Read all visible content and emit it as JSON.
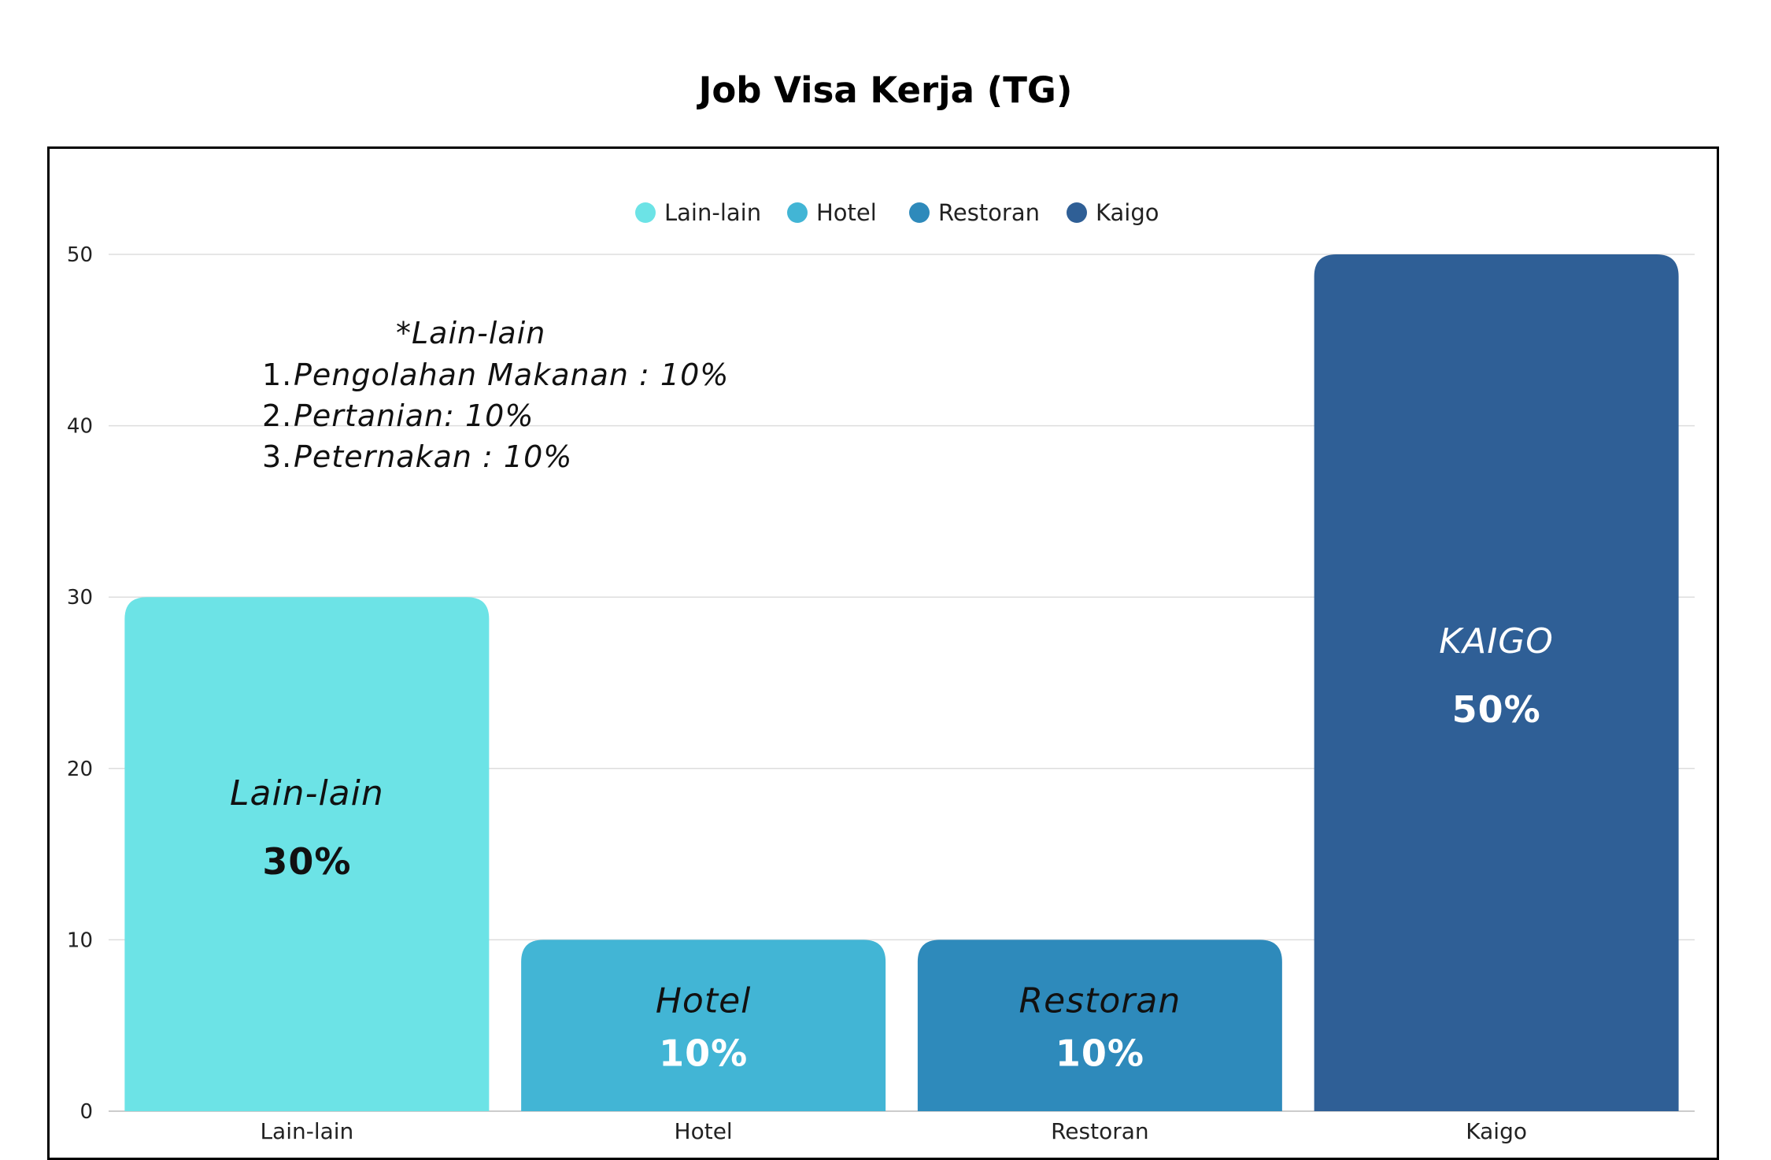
{
  "chart_data": {
    "type": "bar",
    "title": "Job Visa Kerja (TG)",
    "categories": [
      "Lain-lain",
      "Hotel",
      "Restoran",
      "Kaigo"
    ],
    "values": [
      30,
      10,
      10,
      50
    ],
    "colors": [
      "#6ce3e6",
      "#42b5d5",
      "#2e8abb",
      "#2f5f96"
    ],
    "bar_labels": [
      {
        "name": "Lain-lain",
        "value_text": "30%",
        "text_color": "#111111"
      },
      {
        "name": "Hotel",
        "value_text": "10%",
        "text_color": "#ffffff",
        "name_color": "#111111"
      },
      {
        "name": "Restoran",
        "value_text": "10%",
        "text_color": "#ffffff",
        "name_color": "#111111"
      },
      {
        "name": "KAIGO",
        "value_text": "50%",
        "text_color": "#ffffff"
      }
    ],
    "legend": [
      "Lain-lain",
      "Hotel",
      "Restoran",
      "Kaigo"
    ],
    "legend_position": "top",
    "y_ticks": [
      0,
      10,
      20,
      30,
      40,
      50
    ],
    "ylim": [
      0,
      50
    ],
    "grid": true,
    "annotation": {
      "heading": "*Lain-lain",
      "items": [
        {
          "num": "1.",
          "text": "Pengolahan Makanan : 10%"
        },
        {
          "num": "2.",
          "text": "Pertanian: 10%"
        },
        {
          "num": "3.",
          "text": "Peternakan : 10%"
        }
      ]
    }
  }
}
